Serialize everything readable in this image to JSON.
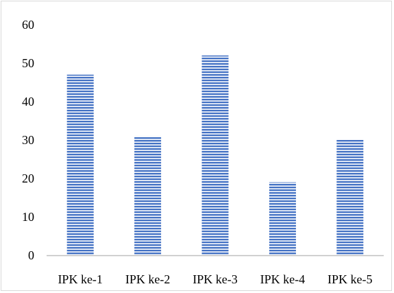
{
  "chart_data": {
    "type": "bar",
    "categories": [
      "IPK ke-1",
      "IPK ke-2",
      "IPK ke-3",
      "IPK ke-4",
      "IPK ke-5"
    ],
    "values": [
      47,
      31,
      52,
      19,
      30
    ],
    "title": "",
    "xlabel": "",
    "ylabel": "",
    "ylim": [
      0,
      60
    ],
    "yticks": [
      0,
      10,
      20,
      30,
      40,
      50,
      60
    ],
    "grid": false,
    "legend": "none",
    "bar_color": "#4472c4",
    "bar_fill_pattern": "horizontal-stripes"
  }
}
